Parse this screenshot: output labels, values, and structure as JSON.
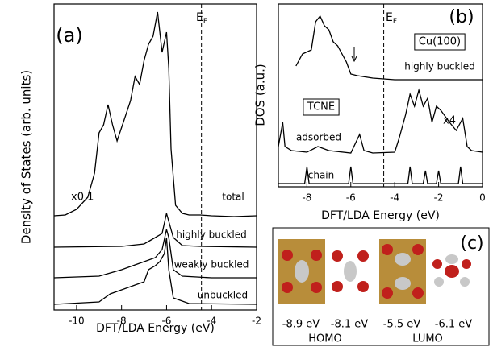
{
  "chart_data": [
    {
      "type": "line",
      "panel_label": "(a)",
      "x_label": "DFT/LDA Energy (eV)",
      "y_label": "Density of States (arb. units)",
      "xlim": [
        -11,
        -2
      ],
      "xticks": [
        -10,
        -8,
        -6,
        -4,
        -2
      ],
      "ylim": [
        0,
        38
      ],
      "ef": -4.45,
      "ef_label": "E",
      "ef_sub": "F",
      "annotations": [
        "x0.1"
      ],
      "series": [
        {
          "name": "total",
          "color": "#000000",
          "x": [
            -11,
            -10.5,
            -10,
            -9.5,
            -9.2,
            -9.0,
            -8.8,
            -8.6,
            -8.4,
            -8.2,
            -7.9,
            -7.6,
            -7.4,
            -7.2,
            -7.0,
            -6.8,
            -6.6,
            -6.4,
            -6.2,
            -6.0,
            -5.9,
            -5.8,
            -5.6,
            -5.3,
            -5,
            -4.5,
            -4,
            -3,
            -2
          ],
          "values": [
            11.7,
            11.8,
            12.5,
            14,
            17,
            22,
            23,
            25.5,
            23,
            21,
            23.5,
            26,
            29,
            28,
            31,
            33,
            34,
            37,
            32,
            34.5,
            30,
            20,
            13,
            12,
            11.8,
            11.8,
            11.7,
            11.6,
            11.7
          ]
        },
        {
          "name": "highly buckled",
          "color": "#000000",
          "x": [
            -11,
            -8,
            -7,
            -6.5,
            -6.2,
            -6,
            -5.9,
            -5.7,
            -5.3,
            -4.5,
            -2
          ],
          "values": [
            7.8,
            7.9,
            8.2,
            9,
            9.5,
            12,
            11,
            9,
            8,
            7.9,
            7.8
          ]
        },
        {
          "name": "weakly buckled",
          "color": "#000000",
          "x": [
            -11,
            -9,
            -8,
            -7.5,
            -7,
            -6.5,
            -6.2,
            -6,
            -5.9,
            -5.7,
            -5.3,
            -4,
            -2
          ],
          "values": [
            4,
            4.2,
            5,
            5.5,
            6,
            6.5,
            7.5,
            10,
            9,
            5,
            4.2,
            4,
            4
          ]
        },
        {
          "name": "unbuckled",
          "color": "#000000",
          "x": [
            -11,
            -9,
            -8.5,
            -8,
            -7.5,
            -7,
            -6.8,
            -6.5,
            -6.3,
            -6.1,
            -6,
            -5.9,
            -5.7,
            -5,
            -2
          ],
          "values": [
            0.7,
            1,
            2,
            2.5,
            3,
            3.5,
            5,
            5.5,
            6,
            7,
            9,
            5,
            1.5,
            0.8,
            0.7
          ]
        }
      ]
    },
    {
      "type": "line",
      "panel_label": "(b)",
      "x_label": "DFT/LDA Energy (eV)",
      "y_label": "DOS (a.u.)",
      "xlim": [
        -9.3,
        0
      ],
      "xticks": [
        -8,
        -6,
        -4,
        -2,
        0
      ],
      "ylim": [
        0,
        22.7
      ],
      "ef": -4.5,
      "ef_label": "E",
      "ef_sub": "F",
      "annotations": [
        "x4",
        "Cu(100)",
        "TCNE"
      ],
      "series": [
        {
          "name": "highly buckled",
          "color": "#000000",
          "x": [
            -8.5,
            -8.2,
            -7.8,
            -7.6,
            -7.4,
            -7.2,
            -7.0,
            -6.8,
            -6.6,
            -6.4,
            -6.2,
            -6,
            -5.7,
            -5,
            -4,
            0
          ],
          "values": [
            15,
            16.5,
            17,
            20.5,
            21.2,
            20,
            19.5,
            18,
            17.5,
            16.5,
            15.5,
            14,
            13.8,
            13.5,
            13.3,
            13.3
          ]
        },
        {
          "name": "adsorbed",
          "color": "#000000",
          "x": [
            -9.3,
            -9.1,
            -9.0,
            -8.7,
            -8,
            -7.5,
            -7,
            -6,
            -5.6,
            -5.4,
            -5,
            -4,
            -3.8,
            -3.5,
            -3.3,
            -3.1,
            -2.9,
            -2.7,
            -2.5,
            -2.3,
            -2.1,
            -1.9,
            -1.5,
            -1.2,
            -0.9,
            -0.7,
            -0.5,
            0
          ],
          "values": [
            5,
            8,
            5,
            4.5,
            4.3,
            5,
            4.5,
            4.2,
            6.5,
            4.5,
            4.2,
            4.3,
            6,
            9,
            11.5,
            10,
            12,
            10,
            11,
            8,
            10,
            9.5,
            8,
            7,
            8.5,
            5,
            4.5,
            4.3
          ]
        },
        {
          "name": "chain",
          "color": "#000000",
          "x": [
            -9.3,
            -8.1,
            -8.0,
            -7.9,
            -6.1,
            -6,
            -5.9,
            -3.4,
            -3.3,
            -3.2,
            -2.7,
            -2.6,
            -2.5,
            -2.1,
            -2.0,
            -1.9,
            -1.1,
            -1.0,
            -0.9,
            0
          ],
          "values": [
            0.4,
            0.4,
            2.5,
            0.4,
            0.4,
            2.5,
            0.4,
            0.4,
            2.5,
            0.4,
            0.4,
            2,
            0.4,
            0.4,
            2,
            0.4,
            0.4,
            2.5,
            0.4,
            0.4
          ]
        }
      ]
    }
  ],
  "panel_c": {
    "label": "(c)",
    "energies": [
      "-8.9 eV",
      "-8.1 eV",
      "-5.5 eV",
      "-6.1 eV"
    ],
    "orbitals": [
      "HOMO",
      "LUMO"
    ]
  }
}
